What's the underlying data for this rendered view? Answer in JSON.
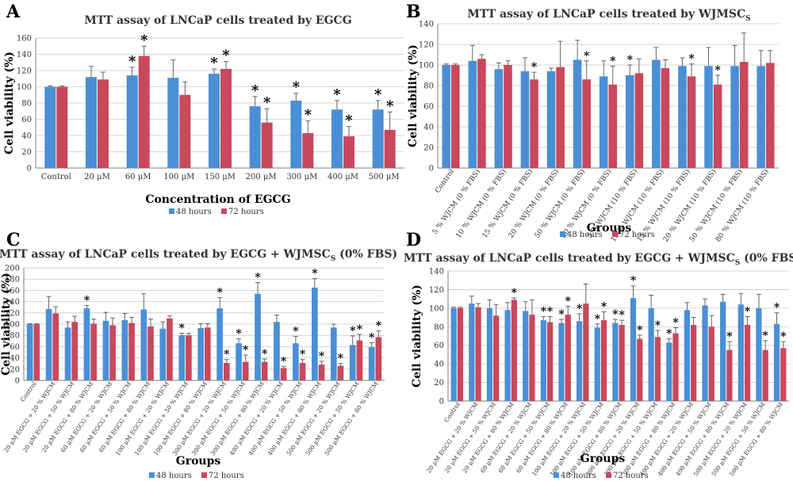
{
  "colors": {
    "series_48": "#4a8fd6",
    "series_72": "#c8485c",
    "grid": "#c8c8c8",
    "axis": "#7f7f7f",
    "text": "#333333"
  },
  "chart_data": [
    {
      "panel_letter": "A",
      "type": "bar",
      "title": "MTT assay of LNCaP cells treated by EGCG",
      "xlabel": "Concentration of EGCG",
      "ylabel": "Cell viability (%)",
      "ylim": [
        0,
        160
      ],
      "yticks": [
        0,
        20,
        40,
        60,
        80,
        100,
        120,
        140,
        160
      ],
      "grid": true,
      "legend": "bottom",
      "categories": [
        "Control",
        "20 μM",
        "60 μM",
        "100 μM",
        "150 μM",
        "200 μM",
        "300 μM",
        "400 μM",
        "500 μM"
      ],
      "series": [
        {
          "name": "48 hours",
          "values": [
            100,
            112,
            114,
            111,
            116,
            76,
            83,
            72,
            72
          ],
          "errors": [
            1,
            13,
            10,
            22,
            6,
            12,
            9,
            11,
            11
          ],
          "significant": [
            false,
            false,
            true,
            false,
            true,
            true,
            true,
            true,
            true
          ]
        },
        {
          "name": "72 hours",
          "values": [
            100,
            109,
            138,
            90,
            122,
            56,
            43,
            39,
            47
          ],
          "errors": [
            1,
            9,
            12,
            16,
            9,
            17,
            15,
            12,
            22
          ],
          "significant": [
            false,
            false,
            true,
            false,
            true,
            true,
            true,
            true,
            true
          ]
        }
      ]
    },
    {
      "panel_letter": "B",
      "type": "bar",
      "title": "MTT assay of LNCaP cells treated by WJMSC",
      "title_sub": "S",
      "xlabel": "Groups",
      "ylabel": "Cell viability (%)",
      "ylim": [
        0,
        140
      ],
      "yticks": [
        0,
        20,
        40,
        60,
        80,
        100,
        120,
        140
      ],
      "grid": true,
      "legend": "bottom",
      "categories": [
        "Control",
        "5 % WJCM (0 % FBS)",
        "10 % WJCM (0 % FBS)",
        "15 % WJCM (0 % FBS)",
        "20 % WJCM (0 % FBS)",
        "50 % WJCM (0 % FBS)",
        "80 % WJCM (0 % FBS)",
        "5 % WJCM (10 % FBS)",
        "10 % WJCM (10 % FBS)",
        "15 % WJCM (10 % FBS)",
        "20 % WJCM (10 % FBS)",
        "50 % WJCM (10 % FBS)",
        "80 % WJCM (10 % FBS)"
      ],
      "series": [
        {
          "name": "48 hours",
          "values": [
            100,
            104,
            96,
            94,
            94,
            105,
            89,
            90,
            105,
            99,
            99,
            99,
            99
          ],
          "errors": [
            1,
            15,
            6,
            13,
            3,
            19,
            15,
            10,
            12,
            8,
            18,
            20,
            15
          ],
          "significant": [
            false,
            false,
            false,
            false,
            false,
            false,
            false,
            true,
            false,
            false,
            false,
            false,
            false
          ]
        },
        {
          "name": "72 hours",
          "values": [
            100,
            106,
            100,
            86,
            98,
            86,
            81,
            92,
            97,
            89,
            81,
            103,
            102
          ],
          "errors": [
            1,
            4,
            4,
            7,
            25,
            18,
            18,
            14,
            8,
            12,
            9,
            28,
            12
          ],
          "significant": [
            false,
            false,
            false,
            true,
            false,
            true,
            true,
            false,
            false,
            true,
            true,
            false,
            false
          ]
        }
      ]
    },
    {
      "panel_letter": "C",
      "type": "bar",
      "title": "MTT assay of LNCaP cells treated by EGCG + WJMSC",
      "title_sub": "S",
      "title_suffix": "(0% FBS)",
      "xlabel": "Groups",
      "ylabel": "Cell viability (%)",
      "ylim": [
        0,
        200
      ],
      "yticks": [
        0,
        20,
        40,
        60,
        80,
        100,
        120,
        140,
        160,
        180,
        200
      ],
      "grid": true,
      "legend": "bottom",
      "categories": [
        "Control",
        "20 μM EGCG + 20 % WJCM",
        "20 μM EGCG + 50 % WJCM",
        "20 μM EGCG + 80 % WJCM",
        "60 μM EGCG + 20 % WJCM",
        "60 μM EGCG + 50 % WJCM",
        "60 μM EGCG + 80 % WJCM",
        "100 μM EGCG + 20 % WJCM",
        "100 μM EGCG + 50 % WJCM",
        "100 μM EGCG + 80 % WJCM",
        "300 μM EGCG + 20 % WJCM",
        "300 μM EGCG + 50 % WJCM",
        "300 μM EGCG + 80 % WJCM",
        "400 μM EGCG + 20 % WJCM",
        "400 μM EGCG + 50 % WJCM",
        "400 μM EGCG + 80 % WJCM",
        "500 μM EGCG + 20 % WJCM",
        "500 μM EGCG + 50 % WJCM",
        "500 μM EGCG + 80 % WJCM"
      ],
      "series": [
        {
          "name": "48 hours",
          "values": [
            100,
            127,
            94,
            128,
            106,
            107,
            126,
            92,
            80,
            93,
            128,
            66,
            154,
            104,
            66,
            165,
            94,
            63,
            59
          ],
          "errors": [
            1,
            22,
            10,
            5,
            15,
            12,
            28,
            12,
            4,
            8,
            19,
            8,
            20,
            12,
            12,
            16,
            6,
            16,
            8
          ],
          "significant": [
            false,
            false,
            false,
            true,
            false,
            false,
            false,
            false,
            true,
            false,
            true,
            true,
            true,
            false,
            true,
            true,
            false,
            true,
            true
          ]
        },
        {
          "name": "72 hours",
          "values": [
            100,
            119,
            104,
            101,
            98,
            102,
            96,
            110,
            80,
            94,
            31,
            33,
            33,
            22,
            31,
            28,
            26,
            71,
            77
          ],
          "errors": [
            1,
            12,
            10,
            8,
            13,
            10,
            13,
            5,
            4,
            7,
            6,
            12,
            5,
            3,
            6,
            6,
            4,
            11,
            11
          ],
          "significant": [
            false,
            false,
            false,
            false,
            false,
            false,
            false,
            false,
            false,
            false,
            true,
            true,
            true,
            true,
            true,
            true,
            true,
            true,
            true
          ]
        }
      ]
    },
    {
      "panel_letter": "D",
      "type": "bar",
      "title": "MTT assay of LNCaP cells treated by EGCG + WJMSC",
      "title_sub": "S",
      "title_suffix": "(0% FBS)",
      "xlabel": "Groups",
      "ylabel": "Cell viability (%)",
      "ylim": [
        0,
        140
      ],
      "yticks": [
        0,
        20,
        40,
        60,
        80,
        100,
        120,
        140
      ],
      "grid": true,
      "legend": "bottom",
      "categories": [
        "Control",
        "20 μM EGCG + 20 % WJCM",
        "20 μM EGCG + 50 % WJCM",
        "20 μM EGCG + 80 % WJCM",
        "60 μM EGCG + 20 % WJCM",
        "60 μM EGCG + 50 % WJCM",
        "60 μM EGCG + 80 % WJCM",
        "100 μM EGCG + 20 % WJCM",
        "100 μM EGCG + 50 % WJCM",
        "100 μM EGCG + 80 % WJCM",
        "300 μM EGCG + 20 % WJCM",
        "300 μM EGCG + 50 % WJCM",
        "300 μM EGCG + 80 % WJCM",
        "400 μM EGCG + 20 % WJCM",
        "400 μM EGCG + 50 % WJCM",
        "400 μM EGCG + 80 % WJCM",
        "500 μM EGCG + 20 % WJCM",
        "500 μM EGCG + 50 % WJCM",
        "500 μM EGCG + 80 % WJCM"
      ],
      "series": [
        {
          "name": "48 hours",
          "values": [
            100,
            105,
            100,
            98,
            97,
            87,
            84,
            86,
            79,
            84,
            111,
            100,
            63,
            98,
            103,
            107,
            104,
            100,
            83
          ],
          "errors": [
            1,
            8,
            9,
            8,
            10,
            4,
            4,
            8,
            4,
            4,
            13,
            14,
            4,
            8,
            7,
            8,
            12,
            15,
            12
          ],
          "significant": [
            false,
            false,
            false,
            false,
            false,
            true,
            true,
            true,
            true,
            true,
            true,
            false,
            true,
            false,
            false,
            false,
            false,
            false,
            true
          ]
        },
        {
          "name": "72 hours",
          "values": [
            100,
            101,
            92,
            109,
            93,
            85,
            93,
            105,
            87,
            82,
            67,
            69,
            73,
            82,
            80,
            55,
            82,
            55,
            57
          ],
          "errors": [
            1,
            4,
            12,
            2,
            16,
            6,
            9,
            21,
            9,
            5,
            4,
            7,
            6,
            8,
            12,
            9,
            9,
            10,
            7
          ],
          "significant": [
            false,
            false,
            false,
            true,
            false,
            true,
            true,
            false,
            true,
            true,
            true,
            true,
            true,
            false,
            false,
            true,
            true,
            true,
            true
          ]
        }
      ]
    }
  ]
}
